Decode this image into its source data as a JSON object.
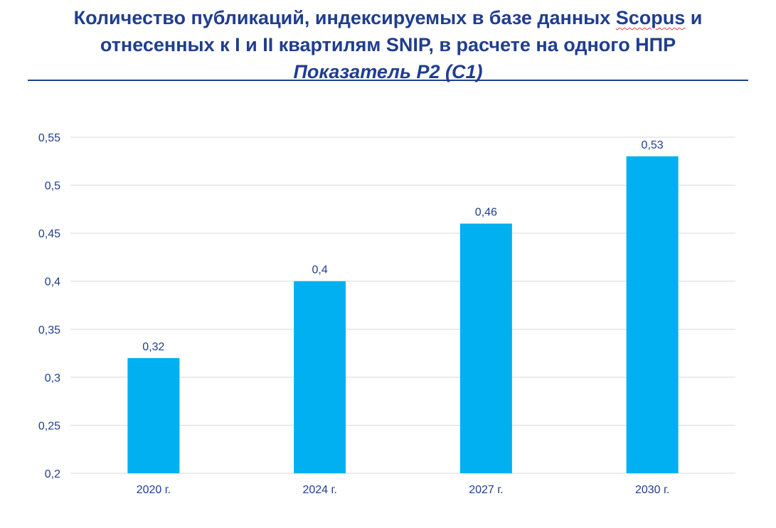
{
  "title": {
    "line1_pre": "Количество публикаций, индексируемых в базе данных ",
    "line1_word": "Scopus",
    "line1_post": " и",
    "line2": "отнесенных к I и II квартилям SNIP, в расчете на одного НПР",
    "line3": "Показатель Р2 (С1)"
  },
  "chart_data": {
    "type": "bar",
    "categories": [
      "2020 г.",
      "2024 г.",
      "2027 г.",
      "2030 г."
    ],
    "values": [
      0.32,
      0.4,
      0.46,
      0.53
    ],
    "value_labels": [
      "0,32",
      "0,4",
      "0,46",
      "0,53"
    ],
    "y_ticks": [
      0.2,
      0.25,
      0.3,
      0.35,
      0.4,
      0.45,
      0.5,
      0.55
    ],
    "y_tick_labels": [
      "0,2",
      "0,25",
      "0,3",
      "0,35",
      "0,4",
      "0,45",
      "0,5",
      "0,55"
    ],
    "ylim": [
      0.2,
      0.55
    ],
    "grid": true,
    "bar_color": "#00b0f0",
    "grid_color": "#d9d9d9",
    "text_color": "#1f3e8f"
  }
}
